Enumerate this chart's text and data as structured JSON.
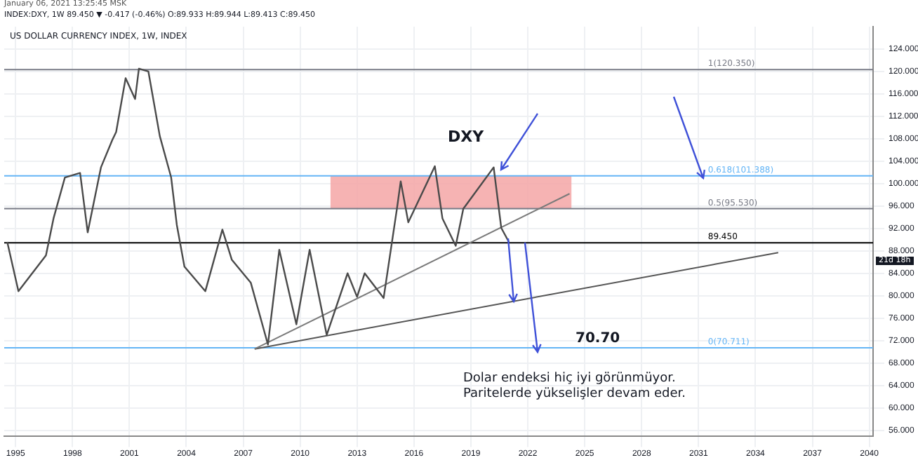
{
  "chart_data": {
    "type": "line",
    "title": "US DOLLAR CURRENCY INDEX, 1W, INDEX",
    "subtitle": "INDEX:DXY, 1W 89.450 ▼ -0.417 (-0.46%) O:89.933 H:89.944 L:89.413 C:89.450",
    "x": [
      1994.56,
      1995.15,
      1996.6,
      1997.0,
      1997.6,
      1998.4,
      1998.8,
      1999.5,
      2000.1,
      2000.3,
      2000.8,
      2001.3,
      2001.5,
      2002.0,
      2002.6,
      2003.2,
      2003.5,
      2003.9,
      2005.0,
      2005.9,
      2006.4,
      2007.4,
      2008.3,
      2008.9,
      2009.8,
      2010.5,
      2011.4,
      2012.5,
      2013.0,
      2013.4,
      2014.4,
      2015.1,
      2015.3,
      2015.7,
      2017.1,
      2017.5,
      2018.2,
      2018.6,
      2020.2,
      2020.6,
      2021.0
    ],
    "series": [
      {
        "color": "#4a4a4a",
        "values": [
          89.6,
          80.8,
          87.2,
          93.8,
          101.1,
          101.9,
          91.3,
          102.9,
          107.8,
          109.2,
          118.8,
          115.1,
          120.5,
          120.0,
          108.5,
          101.1,
          92.6,
          85.2,
          80.8,
          91.8,
          86.4,
          82.3,
          71.3,
          88.2,
          74.9,
          88.2,
          73.0,
          84.0,
          79.8,
          84.0,
          79.6,
          95.5,
          100.4,
          93.1,
          103.1,
          93.8,
          88.9,
          95.5,
          102.9,
          92.1,
          89.6
        ]
      },
      {
        "type": "line",
        "color": "#7a7a7a",
        "x": [
          2007.6,
          2024.2
        ],
        "values": [
          70.5,
          98.2
        ]
      },
      {
        "type": "line",
        "color": "#555555",
        "x": [
          2007.6,
          2035.2
        ],
        "values": [
          70.5,
          87.7
        ]
      }
    ],
    "xlim": [
      1994.4,
      2040.2
    ],
    "xticks": [
      1995,
      1998,
      2001,
      2004,
      2007,
      2010,
      2013,
      2016,
      2019,
      2022,
      2025,
      2028,
      2031,
      2034,
      2037,
      2040
    ],
    "ylim": [
      55,
      128
    ],
    "yticks": [
      {
        "value": 56,
        "label": "56.000"
      },
      {
        "value": 60,
        "label": "60.000"
      },
      {
        "value": 64,
        "label": "64.000"
      },
      {
        "value": 68,
        "label": "68.000"
      },
      {
        "value": 72,
        "label": "72.000"
      },
      {
        "value": 76,
        "label": "76.000"
      },
      {
        "value": 80,
        "label": "80.000"
      },
      {
        "value": 84,
        "label": "84.000"
      },
      {
        "value": 88,
        "label": "88.000"
      },
      {
        "value": 92,
        "label": "92.000"
      },
      {
        "value": 96,
        "label": "96.000"
      },
      {
        "value": 100,
        "label": "100.000"
      },
      {
        "value": 104,
        "label": "104.000"
      },
      {
        "value": 108,
        "label": "108.000"
      },
      {
        "value": 112,
        "label": "112.000"
      },
      {
        "value": 116,
        "label": "116.000"
      },
      {
        "value": 120,
        "label": "120.000"
      },
      {
        "value": 124,
        "label": "124.000"
      }
    ],
    "ref_lines": [
      {
        "axis": "y",
        "value": 120.35,
        "label": "1(120.350)",
        "color": "#787b86"
      },
      {
        "axis": "y",
        "value": 101.388,
        "label": "0.618(101.388)",
        "color": "#64b5f6"
      },
      {
        "axis": "y",
        "value": 95.53,
        "label": "0.5(95.530)",
        "color": "#787b86"
      },
      {
        "axis": "y",
        "value": 70.711,
        "label": "0(70.711)",
        "color": "#64b5f6"
      },
      {
        "axis": "y",
        "value": 89.45,
        "label": "89.450",
        "color": "#000000"
      }
    ],
    "bands": [
      {
        "axis": "y",
        "from": 95.53,
        "to": 101.388,
        "color": "#f4a6a6"
      }
    ],
    "annotations": [
      "January 06, 2021 13:25:45 MSK",
      "21d 18h",
      "DXY",
      "70.70",
      "Dolar endeksi hiç iyi görünmüyor.",
      "Paritelerde yükselişler devam eder."
    ],
    "grid": true,
    "legend": false,
    "marker": "none",
    "line_style": "solid"
  }
}
